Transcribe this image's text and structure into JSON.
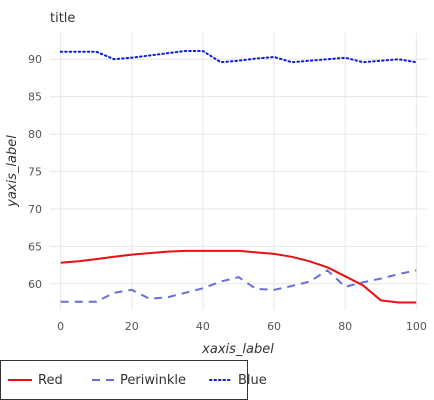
{
  "chart_data": {
    "type": "line",
    "title": "title",
    "xlabel": "xaxis_label",
    "ylabel": "yaxis_label",
    "xlim": [
      -3,
      103
    ],
    "ylim": [
      56.5,
      93.5
    ],
    "xticks": [
      0,
      20,
      40,
      60,
      80,
      100
    ],
    "yticks": [
      60,
      65,
      70,
      75,
      80,
      85,
      90
    ],
    "grid": true,
    "legend_position": "bottom",
    "series": [
      {
        "name": "Red",
        "color": "#e8110f",
        "dash": "solid",
        "x": [
          0,
          5,
          10,
          15,
          20,
          25,
          30,
          35,
          40,
          45,
          50,
          55,
          60,
          65,
          70,
          75,
          80,
          85,
          90,
          95,
          100
        ],
        "y": [
          62.8,
          63.0,
          63.3,
          63.6,
          63.9,
          64.1,
          64.3,
          64.4,
          64.4,
          64.4,
          64.4,
          64.2,
          64.0,
          63.6,
          63.0,
          62.2,
          61.0,
          59.8,
          57.8,
          57.5,
          57.5
        ]
      },
      {
        "name": "Periwinkle",
        "color": "#6a6fd6",
        "dash": "dashed",
        "x": [
          0,
          5,
          10,
          15,
          20,
          25,
          30,
          35,
          40,
          45,
          50,
          55,
          60,
          65,
          70,
          75,
          80,
          85,
          90,
          95,
          100
        ],
        "y": [
          57.6,
          57.6,
          57.6,
          58.8,
          59.2,
          58.0,
          58.2,
          58.8,
          59.4,
          60.3,
          60.9,
          59.3,
          59.2,
          59.7,
          60.3,
          61.8,
          59.6,
          60.2,
          60.7,
          61.3,
          61.8
        ]
      },
      {
        "name": "Blue",
        "color": "#0c1adf",
        "dash": "dotted",
        "x": [
          0,
          5,
          10,
          15,
          20,
          25,
          30,
          35,
          40,
          45,
          50,
          55,
          60,
          65,
          70,
          75,
          80,
          85,
          90,
          95,
          100
        ],
        "y": [
          91.0,
          91.0,
          91.0,
          90.0,
          90.2,
          90.5,
          90.8,
          91.1,
          91.1,
          89.6,
          89.8,
          90.1,
          90.3,
          89.6,
          89.8,
          90.0,
          90.2,
          89.6,
          89.8,
          90.0,
          89.6
        ]
      }
    ]
  }
}
